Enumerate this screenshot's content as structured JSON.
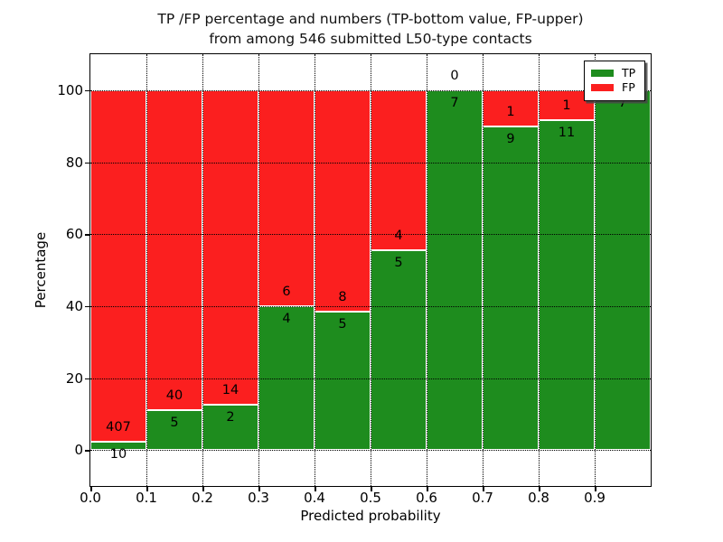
{
  "figure": {
    "title_line1": "TP /FP percentage and numbers (TP-bottom value, FP-upper)",
    "title_line2": "from among 546 submitted L50-type contacts",
    "xlabel": "Predicted probability",
    "ylabel": "Percentage"
  },
  "legend": {
    "position": "upper right",
    "items": [
      {
        "label": "TP",
        "color": "#1e8c1e"
      },
      {
        "label": "FP",
        "color": "#fb1f1f"
      }
    ]
  },
  "chart_data": {
    "type": "bar",
    "stacked": true,
    "orientation": "vertical",
    "title": "TP /FP percentage and numbers (TP-bottom value, FP-upper) from among 546 submitted L50-type contacts",
    "xlabel": "Predicted probability",
    "ylabel": "Percentage",
    "total_submitted": 546,
    "xlim": [
      0.0,
      1.0
    ],
    "ylim": [
      -10,
      110
    ],
    "x_tick_labels": [
      "0.0",
      "0.1",
      "0.2",
      "0.3",
      "0.4",
      "0.5",
      "0.6",
      "0.7",
      "0.8",
      "0.9"
    ],
    "y_ticks": [
      0,
      20,
      40,
      60,
      80,
      100
    ],
    "grid": {
      "style": "dotted",
      "color": "#000000"
    },
    "bar_edge_color": "#ffffff",
    "bin_width": 0.1,
    "legend_position": "upper right",
    "bins": [
      {
        "x_range": [
          0.0,
          0.1
        ],
        "tp": 10,
        "fp": 407,
        "tp_pct": 2.4,
        "fp_pct": 97.6
      },
      {
        "x_range": [
          0.1,
          0.2
        ],
        "tp": 5,
        "fp": 40,
        "tp_pct": 11.1,
        "fp_pct": 88.9
      },
      {
        "x_range": [
          0.2,
          0.3
        ],
        "tp": 2,
        "fp": 14,
        "tp_pct": 12.5,
        "fp_pct": 87.5
      },
      {
        "x_range": [
          0.3,
          0.4
        ],
        "tp": 4,
        "fp": 6,
        "tp_pct": 40.0,
        "fp_pct": 60.0
      },
      {
        "x_range": [
          0.4,
          0.5
        ],
        "tp": 5,
        "fp": 8,
        "tp_pct": 38.5,
        "fp_pct": 61.5
      },
      {
        "x_range": [
          0.5,
          0.6
        ],
        "tp": 5,
        "fp": 4,
        "tp_pct": 55.6,
        "fp_pct": 44.4
      },
      {
        "x_range": [
          0.6,
          0.7
        ],
        "tp": 7,
        "fp": 0,
        "tp_pct": 100.0,
        "fp_pct": 0.0
      },
      {
        "x_range": [
          0.7,
          0.8
        ],
        "tp": 9,
        "fp": 1,
        "tp_pct": 90.0,
        "fp_pct": 10.0
      },
      {
        "x_range": [
          0.8,
          0.9
        ],
        "tp": 11,
        "fp": 1,
        "tp_pct": 91.7,
        "fp_pct": 8.3
      },
      {
        "x_range": [
          0.9,
          1.0
        ],
        "tp": 7,
        "fp": 0,
        "tp_pct": 100.0,
        "fp_pct": 0.0
      }
    ],
    "series": [
      {
        "name": "TP",
        "color": "#1e8c1e",
        "values": [
          10,
          5,
          2,
          4,
          5,
          5,
          7,
          9,
          11,
          7
        ]
      },
      {
        "name": "FP",
        "color": "#fb1f1f",
        "values": [
          407,
          40,
          14,
          6,
          8,
          4,
          0,
          1,
          1,
          0
        ]
      }
    ]
  }
}
